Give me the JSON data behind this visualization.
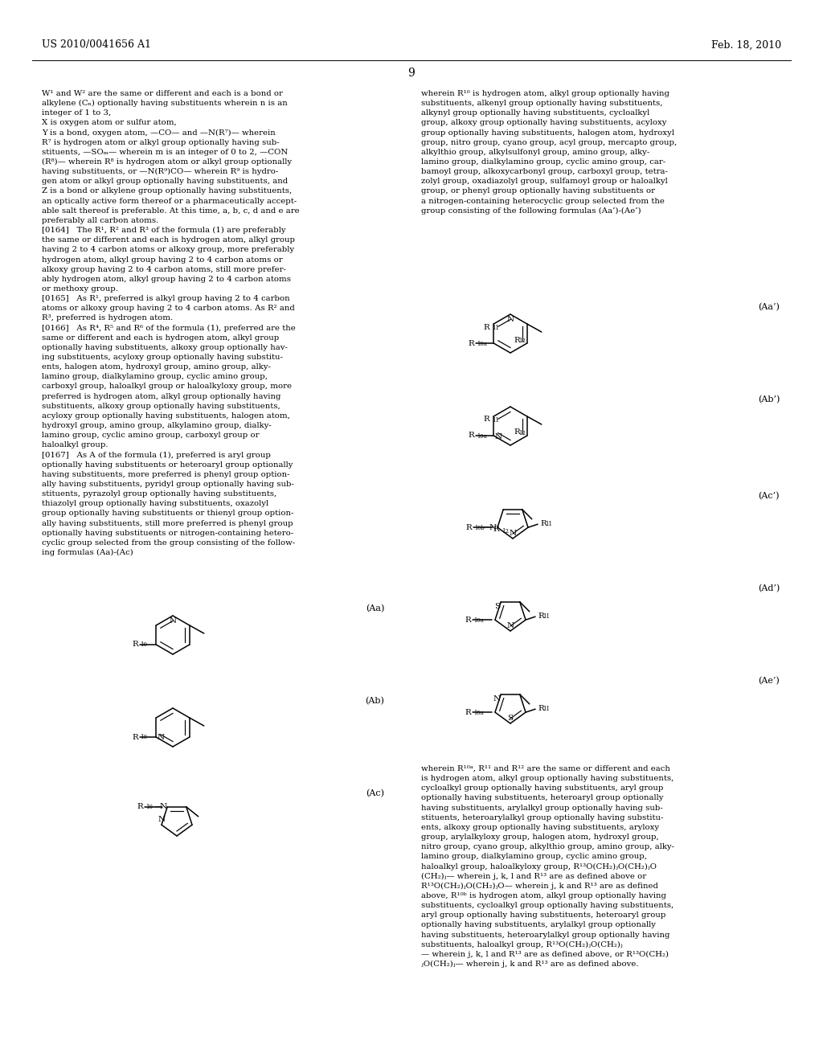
{
  "bg_color": "#ffffff",
  "header_left": "US 2010/0041656 A1",
  "header_right": "Feb. 18, 2010",
  "page_num": "9",
  "left_col_lines": [
    "W¹ and W² are the same or different and each is a bond or",
    "alkylene (Cₙ) optionally having substituents wherein n is an",
    "integer of 1 to 3,",
    "X is oxygen atom or sulfur atom,",
    "Y is a bond, oxygen atom, —CO— and —N(R⁷)— wherein",
    "R⁷ is hydrogen atom or alkyl group optionally having sub-",
    "stituents, —SOₘ— wherein m is an integer of 0 to 2, —CON",
    "(R⁸)— wherein R⁸ is hydrogen atom or alkyl group optionally",
    "having substituents, or —N(R⁹)CO— wherein R⁹ is hydro-",
    "gen atom or alkyl group optionally having substituents, and",
    "Z is a bond or alkylene group optionally having substituents,",
    "an optically active form thereof or a pharmaceutically accept-",
    "able salt thereof is preferable. At this time, a, b, c, d and e are",
    "preferably all carbon atoms.",
    "[0164]   The R¹, R² and R³ of the formula (1) are preferably",
    "the same or different and each is hydrogen atom, alkyl group",
    "having 2 to 4 carbon atoms or alkoxy group, more preferably",
    "hydrogen atom, alkyl group having 2 to 4 carbon atoms or",
    "alkoxy group having 2 to 4 carbon atoms, still more prefer-",
    "ably hydrogen atom, alkyl group having 2 to 4 carbon atoms",
    "or methoxy group.",
    "[0165]   As R¹, preferred is alkyl group having 2 to 4 carbon",
    "atoms or alkoxy group having 2 to 4 carbon atoms. As R² and",
    "R³, preferred is hydrogen atom.",
    "[0166]   As R⁴, R⁵ and R⁶ of the formula (1), preferred are the",
    "same or different and each is hydrogen atom, alkyl group",
    "optionally having substituents, alkoxy group optionally hav-",
    "ing substituents, acyloxy group optionally having substitu-",
    "ents, halogen atom, hydroxyl group, amino group, alky-",
    "lamino group, dialkylamino group, cyclic amino group,",
    "carboxyl group, haloalkyl group or haloalkyloxy group, more",
    "preferred is hydrogen atom, alkyl group optionally having",
    "substituents, alkoxy group optionally having substituents,",
    "acyloxy group optionally having substituents, halogen atom,",
    "hydroxyl group, amino group, alkylamino group, dialky-",
    "lamino group, cyclic amino group, carboxyl group or",
    "haloalkyl group.",
    "[0167]   As A of the formula (1), preferred is aryl group",
    "optionally having substituents or heteroaryl group optionally",
    "having substituents, more preferred is phenyl group option-",
    "ally having substituents, pyridyl group optionally having sub-",
    "stituents, pyrazolyl group optionally having substituents,",
    "thiazolyl group optionally having substituents, oxazolyl",
    "group optionally having substituents or thienyl group option-",
    "ally having substituents, still more preferred is phenyl group",
    "optionally having substituents or nitrogen-containing hetero-",
    "cyclic group selected from the group consisting of the follow-",
    "ing formulas (Aa)-(Ac)"
  ],
  "right_col_lines": [
    "wherein R¹⁰ is hydrogen atom, alkyl group optionally having",
    "substituents, alkenyl group optionally having substituents,",
    "alkynyl group optionally having substituents, cycloalkyl",
    "group, alkoxy group optionally having substituents, acyloxy",
    "group optionally having substituents, halogen atom, hydroxyl",
    "group, nitro group, cyano group, acyl group, mercapto group,",
    "alkylthio group, alkylsulfonyl group, amino group, alky-",
    "lamino group, dialkylamino group, cyclic amino group, car-",
    "bamoyl group, alkoxycarbonyl group, carboxyl group, tetra-",
    "zolyl group, oxadiazolyl group, sulfamoyl group or haloalkyl",
    "group, or phenyl group optionally having substituents or",
    "a nitrogen-containing heterocyclic group selected from the",
    "group consisting of the following formulas (Aa’)-(Ae’)"
  ],
  "right_bottom_lines": [
    "wherein R¹⁰ᵃ, R¹¹ and R¹² are the same or different and each",
    "is hydrogen atom, alkyl group optionally having substituents,",
    "cycloalkyl group optionally having substituents, aryl group",
    "optionally having substituents, heteroaryl group optionally",
    "having substituents, arylalkyl group optionally having sub-",
    "stituents, heteroarylalkyl group optionally having substitu-",
    "ents, alkoxy group optionally having substituents, aryloxy",
    "group, arylalkyloxy group, halogen atom, hydroxyl group,",
    "nitro group, cyano group, alkylthio group, amino group, alky-",
    "lamino group, dialkylamino group, cyclic amino group,",
    "haloalkyl group, haloalkyloxy group, R¹³O(CH₂)ⱼO(CH₂)ⱼO",
    "(CH₂)ⱼ— wherein j, k, l and R¹³ are as defined above or",
    "R¹³O(CH₂)ⱼO(CH₂)ⱼO— wherein j, k and R¹³ are as defined",
    "above, R¹⁰ᵇ is hydrogen atom, alkyl group optionally having",
    "substituents, cycloalkyl group optionally having substituents,",
    "aryl group optionally having substituents, heteroaryl group",
    "optionally having substituents, arylalkyl group optionally",
    "having substituents, heteroarylalkyl group optionally having",
    "substituents, haloalkyl group, R¹³O(CH₂)ⱼO(CH₂)ⱼ",
    "— wherein j, k, l and R¹³ are as defined above, or R¹³O(CH₂)",
    "ⱼO(CH₂)ⱼ— wherein j, k and R¹³ are as defined above."
  ]
}
